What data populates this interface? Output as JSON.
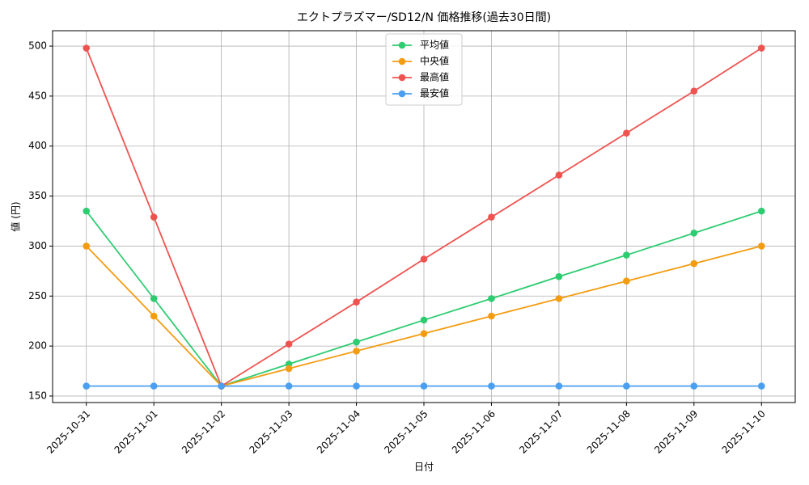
{
  "chart_data": {
    "type": "line",
    "title": "エクトプラズマー/SD12/N 価格推移(過去30日間)",
    "x_label": "日付",
    "y_label": "値 (円)",
    "categories": [
      "2025-10-31",
      "2025-11-01",
      "2025-11-02",
      "2025-11-03",
      "2025-11-04",
      "2025-11-05",
      "2025-11-06",
      "2025-11-07",
      "2025-11-08",
      "2025-11-09",
      "2025-11-10"
    ],
    "series": [
      {
        "name": "平均値",
        "color": "#2ecc71",
        "values": [
          335,
          247.5,
          160,
          182,
          204,
          226,
          247.5,
          269.5,
          291,
          313,
          335
        ]
      },
      {
        "name": "中央値",
        "color": "#f39c12",
        "values": [
          300,
          230,
          160,
          177.5,
          195,
          212.5,
          230,
          247.5,
          265,
          282.5,
          300
        ]
      },
      {
        "name": "最高値",
        "color": "#ef5350",
        "values": [
          498,
          329,
          160,
          202,
          244,
          287,
          329,
          371,
          413,
          455,
          498
        ]
      },
      {
        "name": "最安値",
        "color": "#4a9ff0",
        "values": [
          160,
          160,
          160,
          160,
          160,
          160,
          160,
          160,
          160,
          160,
          160
        ]
      }
    ],
    "ylim": [
      143.5,
      515.4
    ],
    "yticks": [
      150,
      200,
      250,
      300,
      350,
      400,
      450,
      500
    ],
    "grid": true,
    "legend": "upper center"
  }
}
